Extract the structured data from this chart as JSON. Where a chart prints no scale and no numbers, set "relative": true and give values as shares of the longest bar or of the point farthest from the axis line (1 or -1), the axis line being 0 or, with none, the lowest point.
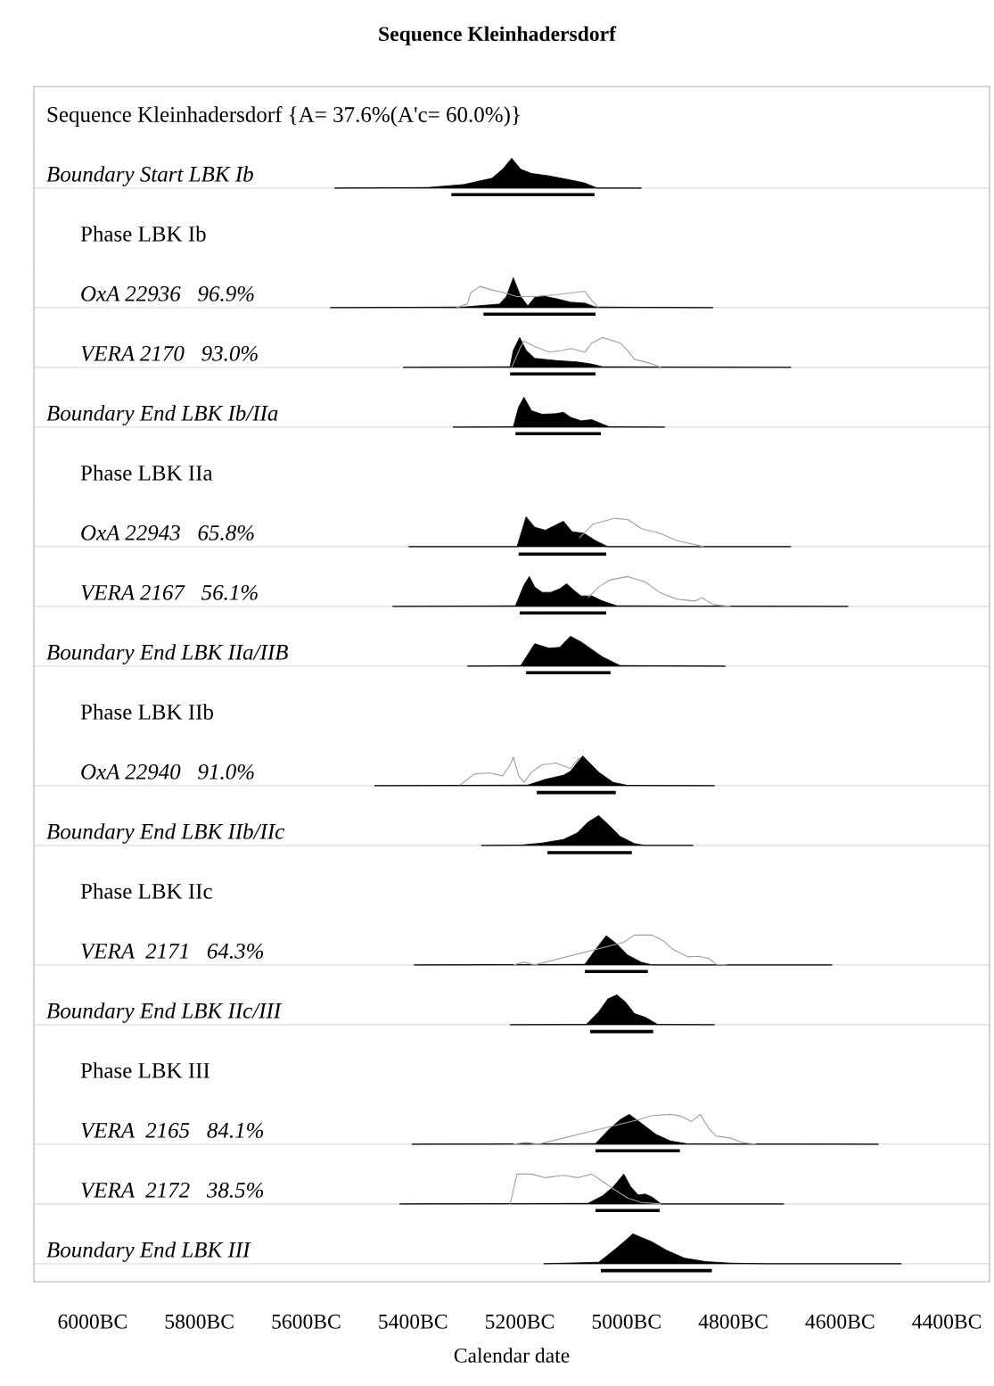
{
  "chart_data": [
    {
      "type": "other",
      "title": "Sequence Kleinhadersdorf",
      "subtitle": "Sequence Kleinhadersdorf {A= 37.6%(A'c= 60.0%)}"
    },
    {
      "type": "area",
      "title": "Boundary Start LBK Ib",
      "relative": true,
      "xlim": [
        -6110,
        -4320
      ],
      "tick_labels": false,
      "series": [
        {
          "type": "area",
          "color": "#000000",
          "x": [
            -5547,
            -5372,
            -5305,
            -5252,
            -5232,
            -5215,
            -5198,
            -5178,
            -5145,
            -5105,
            -5078,
            -5055,
            -4972
          ],
          "values": [
            0,
            0.02,
            0.12,
            0.33,
            0.63,
            1,
            0.63,
            0.49,
            0.41,
            0.27,
            0.17,
            0,
            0
          ]
        },
        {
          "type": "line",
          "color": "#000000",
          "x": [
            -5328,
            -5060
          ],
          "values": [
            -0.22,
            -0.22
          ]
        }
      ]
    },
    {
      "type": "other",
      "title": "Phase LBK Ib"
    },
    {
      "type": "area",
      "title": "OxA 22936   96.9%",
      "relative": true,
      "xlim": [
        -6110,
        -4320
      ],
      "tick_labels": false,
      "series": [
        {
          "type": "line",
          "color": "#a0a0a0",
          "x": [
            -5318,
            -5298,
            -5292,
            -5275,
            -5252,
            -5232,
            -5205,
            -5172,
            -5132,
            -5105,
            -5078,
            -5065,
            -5052
          ],
          "values": [
            0,
            0.12,
            0.49,
            0.71,
            0.59,
            0.51,
            0.37,
            0.37,
            0.43,
            0.49,
            0.55,
            0.24,
            0
          ]
        },
        {
          "type": "area",
          "color": "#000000",
          "x": [
            -5555,
            -5305,
            -5238,
            -5225,
            -5212,
            -5198,
            -5185,
            -5172,
            -5158,
            -5132,
            -5105,
            -5078,
            -5058,
            -4838
          ],
          "values": [
            0,
            0.02,
            0.12,
            0.37,
            1,
            0.37,
            0.06,
            0.34,
            0.39,
            0.3,
            0.18,
            0.15,
            0.02,
            0
          ]
        },
        {
          "type": "line",
          "color": "#000000",
          "x": [
            -5268,
            -5058
          ],
          "values": [
            -0.22,
            -0.22
          ]
        }
      ]
    },
    {
      "type": "area",
      "title": "VERA 2170   93.0%",
      "relative": true,
      "xlim": [
        -6110,
        -4320
      ],
      "tick_labels": false,
      "series": [
        {
          "type": "line",
          "color": "#a0a0a0",
          "x": [
            -5215,
            -5198,
            -5192,
            -5172,
            -5145,
            -5118,
            -5105,
            -5078,
            -5065,
            -5045,
            -5012,
            -4998,
            -4985,
            -4958,
            -4935
          ],
          "values": [
            0,
            0.7,
            0.88,
            0.7,
            0.51,
            0.57,
            0.63,
            0.51,
            0.82,
            1,
            0.82,
            0.57,
            0.27,
            0.15,
            0
          ]
        },
        {
          "type": "area",
          "color": "#000000",
          "x": [
            -5418,
            -5218,
            -5212,
            -5200,
            -5188,
            -5172,
            -5132,
            -5092,
            -5065,
            -5045,
            -4692
          ],
          "values": [
            0,
            0.02,
            0.57,
            1,
            0.57,
            0.3,
            0.23,
            0.18,
            0.11,
            0.02,
            0
          ]
        },
        {
          "type": "line",
          "color": "#000000",
          "x": [
            -5218,
            -5058
          ],
          "values": [
            -0.22,
            -0.22
          ]
        }
      ]
    },
    {
      "type": "area",
      "title": "Boundary End LBK Ib/IIa",
      "relative": true,
      "xlim": [
        -6110,
        -4320
      ],
      "tick_labels": false,
      "series": [
        {
          "type": "area",
          "color": "#000000",
          "x": [
            -5325,
            -5212,
            -5202,
            -5192,
            -5178,
            -5158,
            -5132,
            -5118,
            -5105,
            -5085,
            -5065,
            -5045,
            -5032,
            -4928
          ],
          "values": [
            0,
            0.01,
            0.67,
            1,
            0.55,
            0.43,
            0.45,
            0.5,
            0.33,
            0.21,
            0.25,
            0.1,
            0.01,
            0
          ]
        },
        {
          "type": "line",
          "color": "#000000",
          "x": [
            -5208,
            -5048
          ],
          "values": [
            -0.22,
            -0.22
          ]
        }
      ]
    },
    {
      "type": "other",
      "title": "Phase LBK IIa"
    },
    {
      "type": "area",
      "title": "OxA 22943   65.8%",
      "relative": true,
      "xlim": [
        -6110,
        -4320
      ],
      "tick_labels": false,
      "series": [
        {
          "type": "line",
          "color": "#a0a0a0",
          "x": [
            -5088,
            -5063,
            -5022,
            -4997,
            -4972,
            -4938,
            -4905,
            -4855
          ],
          "values": [
            0.3,
            0.75,
            0.95,
            0.9,
            0.6,
            0.45,
            0.2,
            0
          ]
        },
        {
          "type": "area",
          "color": "#000000",
          "x": [
            -5408,
            -5205,
            -5188,
            -5172,
            -5152,
            -5135,
            -5118,
            -5102,
            -5080,
            -5058,
            -5035,
            -4692
          ],
          "values": [
            0,
            0,
            1,
            0.65,
            0.55,
            0.7,
            0.85,
            0.5,
            0.45,
            0.2,
            0,
            0
          ]
        },
        {
          "type": "line",
          "color": "#000000",
          "x": [
            -5202,
            -5038
          ],
          "values": [
            -0.25,
            -0.25
          ]
        }
      ]
    },
    {
      "type": "area",
      "title": "VERA 2167   56.1%",
      "relative": true,
      "xlim": [
        -6110,
        -4320
      ],
      "tick_labels": false,
      "series": [
        {
          "type": "line",
          "color": "#a0a0a0",
          "x": [
            -5072,
            -5052,
            -5032,
            -4998,
            -4965,
            -4938,
            -4905,
            -4872,
            -4858,
            -4838,
            -4805
          ],
          "values": [
            0.29,
            0.65,
            0.88,
            1,
            0.82,
            0.47,
            0.24,
            0.18,
            0.29,
            0.06,
            0
          ]
        },
        {
          "type": "area",
          "color": "#000000",
          "x": [
            -5438,
            -5208,
            -5192,
            -5182,
            -5172,
            -5158,
            -5142,
            -5125,
            -5112,
            -5098,
            -5085,
            -5065,
            -5045,
            -5018,
            -4585
          ],
          "values": [
            0,
            0.02,
            0.71,
            1,
            0.65,
            0.47,
            0.47,
            0.59,
            0.76,
            0.53,
            0.35,
            0.35,
            0.18,
            0.02,
            0
          ]
        },
        {
          "type": "line",
          "color": "#000000",
          "x": [
            -5200,
            -5038
          ],
          "values": [
            -0.22,
            -0.22
          ]
        }
      ]
    },
    {
      "type": "area",
      "title": "Boundary End LBK IIa/IIB",
      "relative": true,
      "xlim": [
        -6110,
        -4320
      ],
      "tick_labels": false,
      "series": [
        {
          "type": "area",
          "color": "#000000",
          "x": [
            -5298,
            -5198,
            -5172,
            -5145,
            -5125,
            -5105,
            -5085,
            -5065,
            -5045,
            -5012,
            -4815
          ],
          "values": [
            0,
            0.02,
            0.75,
            0.6,
            0.63,
            1,
            0.81,
            0.56,
            0.31,
            0.02,
            0
          ]
        },
        {
          "type": "line",
          "color": "#000000",
          "x": [
            -5188,
            -5030
          ],
          "values": [
            -0.22,
            -0.22
          ]
        }
      ]
    },
    {
      "type": "other",
      "title": "Phase LBK IIb"
    },
    {
      "type": "area",
      "title": "OxA 22940   91.0%",
      "relative": true,
      "xlim": [
        -6110,
        -4320
      ],
      "tick_labels": false,
      "series": [
        {
          "type": "line",
          "color": "#a0a0a0",
          "x": [
            -5312,
            -5285,
            -5258,
            -5232,
            -5218,
            -5212,
            -5202,
            -5192,
            -5178,
            -5158,
            -5132,
            -5105,
            -5088
          ],
          "values": [
            0.02,
            0.39,
            0.43,
            0.33,
            0.7,
            0.96,
            0.33,
            0.11,
            0.45,
            0.7,
            0.76,
            0.57,
            0.95
          ]
        },
        {
          "type": "area",
          "color": "#000000",
          "x": [
            -5472,
            -5185,
            -5152,
            -5118,
            -5105,
            -5082,
            -5052,
            -5025,
            -4998,
            -4835
          ],
          "values": [
            0,
            0.02,
            0.21,
            0.35,
            0.48,
            1,
            0.45,
            0.11,
            0.01,
            0
          ]
        },
        {
          "type": "line",
          "color": "#000000",
          "x": [
            -5168,
            -5020
          ],
          "values": [
            -0.23,
            -0.23
          ]
        }
      ]
    },
    {
      "type": "area",
      "title": "Boundary End LBK IIb/IIc",
      "relative": true,
      "xlim": [
        -6110,
        -4320
      ],
      "tick_labels": false,
      "series": [
        {
          "type": "area",
          "color": "#000000",
          "x": [
            -5272,
            -5198,
            -5158,
            -5118,
            -5092,
            -5072,
            -5052,
            -5032,
            -5012,
            -4985,
            -4965,
            -4875
          ],
          "values": [
            0,
            0.01,
            0.08,
            0.2,
            0.42,
            0.78,
            1,
            0.66,
            0.3,
            0.06,
            0,
            0
          ]
        },
        {
          "type": "line",
          "color": "#000000",
          "x": [
            -5148,
            -4990
          ],
          "values": [
            -0.24,
            -0.24
          ]
        }
      ]
    },
    {
      "type": "other",
      "title": "Phase LBK IIc"
    },
    {
      "type": "area",
      "title": "VERA  2171   64.3%",
      "relative": true,
      "xlim": [
        -6110,
        -4320
      ],
      "tick_labels": false,
      "series": [
        {
          "type": "line",
          "color": "#a0a0a0",
          "x": [
            -5212,
            -5192,
            -5172,
            -5005,
            -4985,
            -4952,
            -4932,
            -4912,
            -4885,
            -4865,
            -4845,
            -4832,
            -4812
          ],
          "values": [
            0,
            0.09,
            0,
            0.76,
            1,
            1,
            0.82,
            0.51,
            0.27,
            0.29,
            0.21,
            0.02,
            0
          ]
        },
        {
          "type": "area",
          "color": "#000000",
          "x": [
            -5398,
            -5078,
            -5058,
            -5038,
            -5018,
            -4998,
            -4972,
            -4952,
            -4615
          ],
          "values": [
            0,
            0.02,
            0.51,
            0.98,
            0.7,
            0.33,
            0.09,
            0,
            0
          ]
        },
        {
          "type": "line",
          "color": "#000000",
          "x": [
            -5078,
            -4960
          ],
          "values": [
            -0.22,
            -0.22
          ]
        }
      ]
    },
    {
      "type": "area",
      "title": "Boundary End LBK IIc/III",
      "relative": true,
      "xlim": [
        -6110,
        -4320
      ],
      "tick_labels": false,
      "series": [
        {
          "type": "area",
          "color": "#000000",
          "x": [
            -5218,
            -5075,
            -5052,
            -5035,
            -5018,
            -5002,
            -4985,
            -4965,
            -4942,
            -4835
          ],
          "values": [
            0,
            0.01,
            0.43,
            0.86,
            1,
            0.76,
            0.37,
            0.25,
            0.01,
            0
          ]
        },
        {
          "type": "line",
          "color": "#000000",
          "x": [
            -5068,
            -4950
          ],
          "values": [
            -0.23,
            -0.23
          ]
        }
      ]
    },
    {
      "type": "other",
      "title": "Phase LBK III"
    },
    {
      "type": "area",
      "title": "VERA  2165   84.1%",
      "relative": true,
      "xlim": [
        -6110,
        -4320
      ],
      "tick_labels": false,
      "series": [
        {
          "type": "line",
          "color": "#a0a0a0",
          "x": [
            -5212,
            -5188,
            -5165,
            -4978,
            -4952,
            -4918,
            -4898,
            -4878,
            -4862,
            -4845,
            -4832,
            -4805,
            -4785,
            -4758
          ],
          "values": [
            0,
            0.06,
            0,
            0.82,
            0.96,
            1,
            0.94,
            0.76,
            1,
            0.51,
            0.27,
            0.21,
            0.06,
            0
          ]
        },
        {
          "type": "area",
          "color": "#000000",
          "x": [
            -5402,
            -5058,
            -5032,
            -5012,
            -4995,
            -4972,
            -4945,
            -4918,
            -4885,
            -4528
          ],
          "values": [
            0,
            0.02,
            0.51,
            0.82,
            1,
            0.7,
            0.33,
            0.11,
            0.01,
            0
          ]
        },
        {
          "type": "line",
          "color": "#000000",
          "x": [
            -5058,
            -4900
          ],
          "values": [
            -0.22,
            -0.22
          ]
        }
      ]
    },
    {
      "type": "area",
      "title": "VERA  2172   38.5%",
      "relative": true,
      "xlim": [
        -6110,
        -4320
      ],
      "tick_labels": false,
      "series": [
        {
          "type": "line",
          "color": "#a0a0a0",
          "x": [
            -5218,
            -5205,
            -5178,
            -5152,
            -5118,
            -5092,
            -5065,
            -5045,
            -5025,
            -4998,
            -4972,
            -4935
          ],
          "values": [
            0,
            1,
            1,
            0.88,
            0.96,
            0.88,
            1,
            0.76,
            0.51,
            0.2,
            0.05,
            0
          ]
        },
        {
          "type": "area",
          "color": "#000000",
          "x": [
            -5425,
            -5072,
            -5045,
            -5025,
            -5005,
            -4992,
            -4978,
            -4965,
            -4952,
            -4935,
            -4705
          ],
          "values": [
            0,
            0.02,
            0.27,
            0.57,
            1,
            0.57,
            0.3,
            0.33,
            0.23,
            0,
            0
          ]
        },
        {
          "type": "line",
          "color": "#000000",
          "x": [
            -5058,
            -4938
          ],
          "values": [
            -0.22,
            -0.22
          ]
        }
      ]
    },
    {
      "type": "area",
      "title": "Boundary End LBK III",
      "relative": true,
      "xlim": [
        -6110,
        -4320
      ],
      "tick_labels": "x",
      "xlabel": "Calendar date",
      "xticks": [
        {
          "value": -6000,
          "label": "6000BC"
        },
        {
          "value": -5800,
          "label": "5800BC"
        },
        {
          "value": -5600,
          "label": "5600BC"
        },
        {
          "value": -5400,
          "label": "5400BC"
        },
        {
          "value": -5200,
          "label": "5200BC"
        },
        {
          "value": -5000,
          "label": "5000BC"
        },
        {
          "value": -4800,
          "label": "4800BC"
        },
        {
          "value": -4600,
          "label": "4600BC"
        },
        {
          "value": -4400,
          "label": "4400BC"
        }
      ],
      "series": [
        {
          "type": "area",
          "color": "#000000",
          "x": [
            -5155,
            -5052,
            -5025,
            -5005,
            -4988,
            -4972,
            -4952,
            -4925,
            -4892,
            -4852,
            -4805,
            -4738,
            -4485
          ],
          "values": [
            0,
            0.05,
            0.43,
            0.73,
            1,
            0.88,
            0.73,
            0.45,
            0.19,
            0.07,
            0.02,
            0,
            0
          ]
        },
        {
          "type": "line",
          "color": "#000000",
          "x": [
            -5048,
            -4840
          ],
          "values": [
            -0.23,
            -0.23
          ]
        }
      ]
    }
  ]
}
